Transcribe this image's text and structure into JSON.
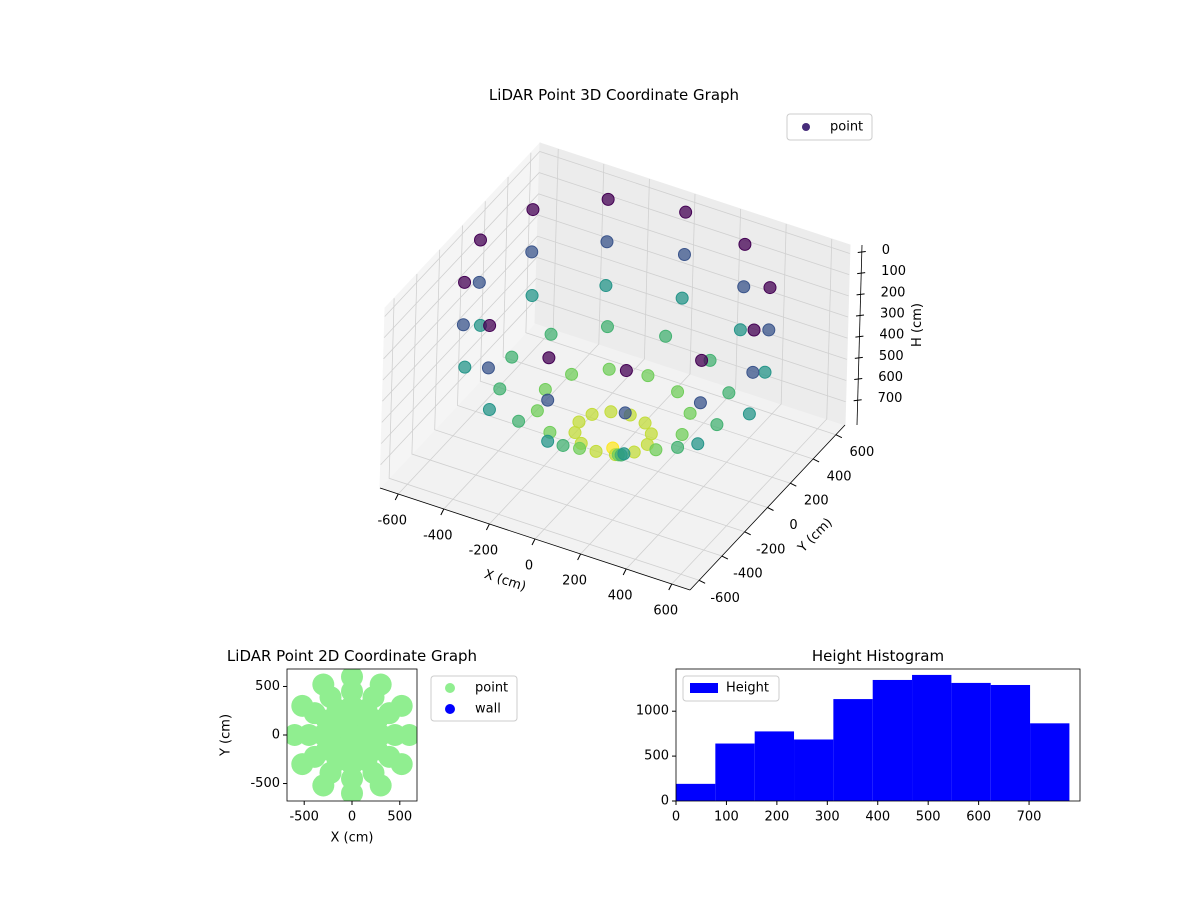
{
  "chart_data": [
    {
      "type": "scatter3d",
      "title": "LiDAR Point 3D Coordinate Graph",
      "xlabel": "X (cm)",
      "ylabel": "Y (cm)",
      "zlabel": "H (cm)",
      "xlim": [
        -680,
        680
      ],
      "ylim": [
        -680,
        680
      ],
      "zlim": [
        810,
        -40
      ],
      "xticks": [
        -600,
        -400,
        -200,
        0,
        200,
        400,
        600
      ],
      "yticks": [
        -600,
        -400,
        -200,
        0,
        200,
        400,
        600
      ],
      "zticks": [
        0,
        100,
        200,
        300,
        400,
        500,
        600,
        700
      ],
      "grid": true,
      "legend": "upper right",
      "colormap": [
        "#440154",
        "#3b528b",
        "#21918c",
        "#5ec962",
        "#fde725"
      ],
      "series": [
        {
          "name": "point",
          "color": "#472d7b",
          "x": [
            600,
            520,
            300,
            0,
            -300,
            -520,
            -600,
            -520,
            -300,
            0,
            300,
            520,
            600,
            520,
            300,
            0,
            -300,
            -520,
            -600,
            -520,
            -300,
            0,
            300,
            520,
            590,
            511,
            295,
            0,
            -295,
            -511,
            -590,
            -511,
            -295,
            0,
            295,
            511,
            450,
            390,
            225,
            0,
            -225,
            -390,
            -450,
            -390,
            -225,
            0,
            225,
            390,
            300,
            260,
            150,
            0,
            -150,
            -260,
            -300,
            -260,
            -150,
            0,
            150,
            260,
            150,
            130,
            75,
            0,
            -75,
            -130,
            -150,
            -130,
            -75,
            0,
            75,
            130,
            0
          ],
          "y": [
            0,
            300,
            520,
            600,
            520,
            300,
            0,
            -300,
            -520,
            -600,
            -520,
            -300,
            0,
            300,
            520,
            600,
            520,
            300,
            0,
            -300,
            -520,
            -600,
            -520,
            -300,
            0,
            295,
            511,
            590,
            511,
            295,
            0,
            -295,
            -511,
            -590,
            -511,
            -295,
            0,
            225,
            390,
            450,
            390,
            225,
            0,
            -225,
            -390,
            -450,
            -390,
            -225,
            0,
            150,
            260,
            300,
            260,
            150,
            0,
            -150,
            -260,
            -300,
            -260,
            -150,
            0,
            75,
            130,
            150,
            130,
            75,
            0,
            -75,
            -130,
            -150,
            -130,
            -75,
            0
          ],
          "h": [
            0,
            0,
            0,
            0,
            0,
            0,
            0,
            0,
            0,
            0,
            0,
            0,
            200,
            200,
            200,
            200,
            200,
            200,
            200,
            200,
            200,
            200,
            200,
            200,
            400,
            400,
            400,
            400,
            400,
            400,
            400,
            400,
            400,
            400,
            400,
            400,
            500,
            500,
            500,
            500,
            500,
            500,
            500,
            500,
            500,
            500,
            500,
            500,
            600,
            600,
            600,
            600,
            600,
            600,
            600,
            600,
            600,
            600,
            600,
            600,
            700,
            700,
            700,
            700,
            700,
            700,
            700,
            700,
            700,
            700,
            700,
            700,
            770
          ]
        }
      ]
    },
    {
      "type": "scatter",
      "title": "LiDAR Point 2D Coordinate Graph",
      "xlabel": "X (cm)",
      "ylabel": "Y (cm)",
      "xlim": [
        -680,
        680
      ],
      "ylim": [
        -680,
        680
      ],
      "xticks": [
        -500,
        0,
        500
      ],
      "yticks": [
        -500,
        0,
        500
      ],
      "legend": "outside right",
      "series": [
        {
          "name": "point",
          "color": "#90ee90",
          "x": [
            600,
            520,
            300,
            0,
            -300,
            -520,
            -600,
            -520,
            -300,
            0,
            300,
            520,
            450,
            390,
            225,
            0,
            -225,
            -390,
            -450,
            -390,
            -225,
            0,
            225,
            390,
            300,
            260,
            150,
            0,
            -150,
            -260,
            -300,
            -260,
            -150,
            0,
            150,
            260,
            150,
            130,
            75,
            0,
            -75,
            -130,
            -150,
            -130,
            -75,
            0,
            75,
            130,
            0
          ],
          "y": [
            0,
            300,
            520,
            600,
            520,
            300,
            0,
            -300,
            -520,
            -600,
            -520,
            -300,
            0,
            225,
            390,
            450,
            390,
            225,
            0,
            -225,
            -390,
            -450,
            -390,
            -225,
            0,
            150,
            260,
            300,
            260,
            150,
            0,
            -150,
            -260,
            -300,
            -260,
            -150,
            0,
            75,
            130,
            150,
            130,
            75,
            0,
            -75,
            -130,
            -150,
            -130,
            -75,
            0
          ]
        },
        {
          "name": "wall",
          "color": "#0000ff",
          "x": [],
          "y": []
        }
      ]
    },
    {
      "type": "histogram",
      "title": "Height Histogram",
      "name": "Height",
      "color": "#0000ff",
      "bins": [
        0,
        78,
        156,
        234,
        312,
        390,
        468,
        546,
        624,
        702,
        780
      ],
      "counts": [
        191,
        640,
        775,
        685,
        1135,
        1348,
        1404,
        1315,
        1292,
        865
      ],
      "xlim": [
        0,
        801
      ],
      "ylim": [
        0,
        1470
      ],
      "xticks": [
        0,
        100,
        200,
        300,
        400,
        500,
        600,
        700
      ],
      "yticks": [
        0,
        500,
        1000
      ],
      "legend": "upper left"
    }
  ]
}
